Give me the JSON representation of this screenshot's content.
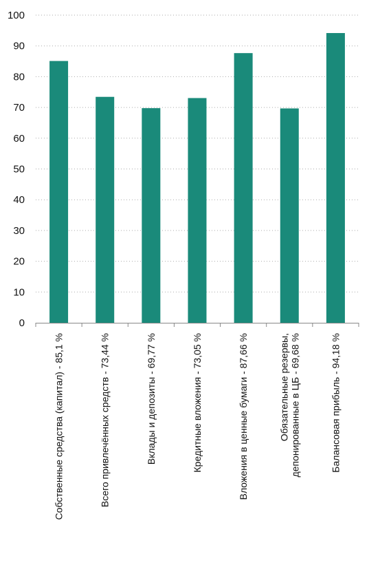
{
  "chart_data": {
    "type": "bar",
    "categories": [
      [
        "Собственные средства (капитал) - 85,1 %"
      ],
      [
        "Всего привлечённых средств - 73,44 %"
      ],
      [
        "Вклады и депозиты - 69,77 %"
      ],
      [
        "Кредитные вложения - 73,05 %"
      ],
      [
        "Вложения в ценные бумаги - 87,66 %"
      ],
      [
        "Обязательные резервы,",
        "депонированные в ЦБ - 69,68 %"
      ],
      [
        "Балансовая прибыль - 94,18 %"
      ]
    ],
    "values": [
      85.1,
      73.44,
      69.77,
      73.05,
      87.66,
      69.68,
      94.18
    ],
    "yticks": [
      "0",
      "10",
      "20",
      "30",
      "40",
      "50",
      "60",
      "70",
      "80",
      "90",
      "100"
    ],
    "ylim": [
      0,
      100
    ],
    "grid": true,
    "colors": {
      "bar": "#1a8a7a",
      "grid": "#aaaaaa",
      "axis": "#888888"
    }
  }
}
